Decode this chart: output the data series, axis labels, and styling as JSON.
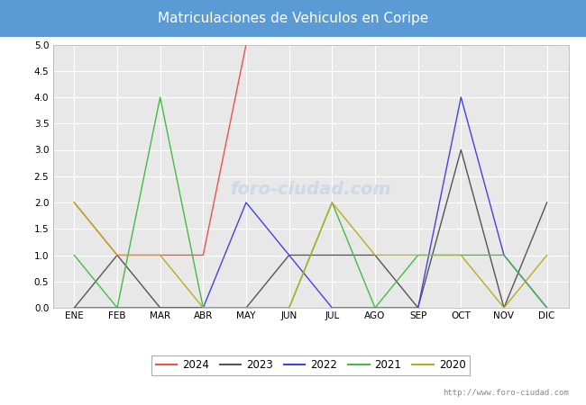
{
  "title": "Matriculaciones de Vehiculos en Coripe",
  "months": [
    "ENE",
    "FEB",
    "MAR",
    "ABR",
    "MAY",
    "JUN",
    "JUL",
    "AGO",
    "SEP",
    "OCT",
    "NOV",
    "DIC"
  ],
  "series": {
    "2024": [
      2,
      1,
      1,
      1,
      5,
      null,
      null,
      null,
      null,
      null,
      null,
      null
    ],
    "2023": [
      0,
      1,
      0,
      0,
      0,
      1,
      1,
      1,
      0,
      3,
      0,
      2
    ],
    "2022": [
      0,
      0,
      0,
      0,
      2,
      1,
      0,
      0,
      0,
      4,
      1,
      0
    ],
    "2021": [
      1,
      0,
      4,
      0,
      0,
      0,
      2,
      0,
      1,
      1,
      1,
      0
    ],
    "2020": [
      2,
      1,
      1,
      0,
      0,
      0,
      2,
      1,
      1,
      1,
      0,
      1
    ]
  },
  "colors": {
    "2024": "#e8534a",
    "2023": "#555555",
    "2022": "#4444dd",
    "2021": "#44bb44",
    "2020": "#bbaa22"
  },
  "ylim": [
    0,
    5.0
  ],
  "yticks": [
    0.0,
    0.5,
    1.0,
    1.5,
    2.0,
    2.5,
    3.0,
    3.5,
    4.0,
    4.5,
    5.0
  ],
  "title_bg_color": "#5b9bd5",
  "title_text_color": "#ffffff",
  "plot_bg_color": "#e8e8e8",
  "grid_color": "#ffffff",
  "watermark_url": "http://www.foro-ciudad.com",
  "watermark_center": "foro-ciudad.com",
  "legend_years": [
    "2024",
    "2023",
    "2022",
    "2021",
    "2020"
  ]
}
